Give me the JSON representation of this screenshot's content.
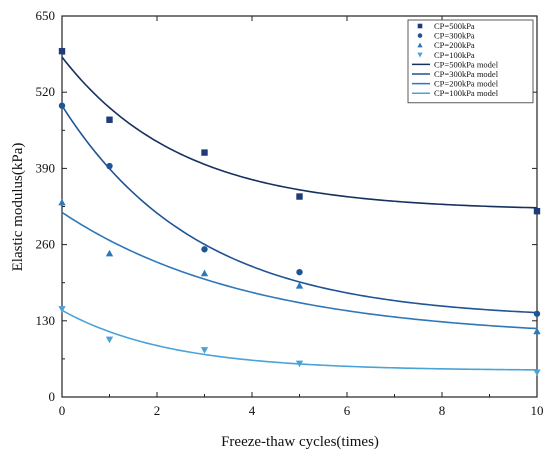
{
  "chart_data": {
    "type": "scatter",
    "xlabel": "Freeze-thaw cycles(times)",
    "ylabel": "Elastic modulus(kPa)",
    "xlim": [
      0,
      10
    ],
    "ylim": [
      0,
      650
    ],
    "x_ticks": [
      0,
      2,
      4,
      6,
      8,
      10
    ],
    "y_ticks": [
      0,
      130,
      260,
      390,
      520,
      650
    ],
    "grid": false,
    "legend_position": "top-right",
    "series": [
      {
        "name": "CP=500kPa",
        "marker": "square",
        "color": "#1f3c78",
        "points": [
          [
            0,
            590
          ],
          [
            1,
            473
          ],
          [
            3,
            417
          ],
          [
            5,
            342
          ],
          [
            10,
            317
          ]
        ]
      },
      {
        "name": "CP=300kPa",
        "marker": "circle",
        "color": "#1f5596",
        "points": [
          [
            0,
            497
          ],
          [
            1,
            394
          ],
          [
            3,
            252
          ],
          [
            5,
            213
          ],
          [
            10,
            142
          ]
        ]
      },
      {
        "name": "CP=200kPa",
        "marker": "triangle-up",
        "color": "#2f78b8",
        "points": [
          [
            0,
            332
          ],
          [
            1,
            245
          ],
          [
            3,
            211
          ],
          [
            5,
            190
          ],
          [
            10,
            112
          ]
        ]
      },
      {
        "name": "CP=100kPa",
        "marker": "triangle-down",
        "color": "#4aa3d8",
        "points": [
          [
            0,
            150
          ],
          [
            1,
            98
          ],
          [
            3,
            80
          ],
          [
            5,
            57
          ],
          [
            10,
            42
          ]
        ]
      }
    ],
    "models": [
      {
        "name": "CP=500kPa model",
        "color": "#16305f",
        "a": 262,
        "b": 0.4,
        "c": 318
      },
      {
        "name": "CP=300kPa model",
        "color": "#1f5596",
        "a": 364,
        "b": 0.35,
        "c": 133
      },
      {
        "name": "CP=200kPa model",
        "color": "#2f78b8",
        "a": 216,
        "b": 0.25,
        "c": 99
      },
      {
        "name": "CP=100kPa model",
        "color": "#4aa3d8",
        "a": 103,
        "b": 0.44,
        "c": 45
      }
    ]
  }
}
